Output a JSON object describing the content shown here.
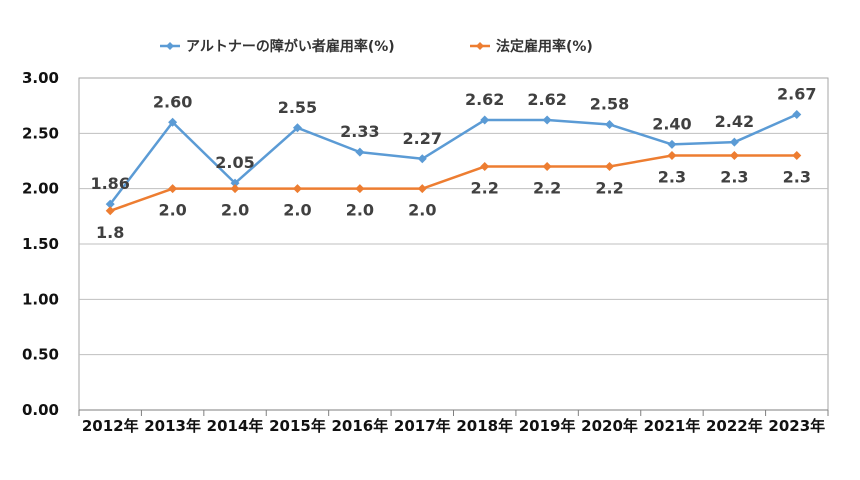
{
  "chart_data": {
    "type": "line",
    "title": "",
    "xlabel": "",
    "ylabel": "",
    "categories": [
      "2012年",
      "2013年",
      "2014年",
      "2015年",
      "2016年",
      "2017年",
      "2018年",
      "2019年",
      "2020年",
      "2021年",
      "2022年",
      "2023年"
    ],
    "ylim": [
      0,
      3
    ],
    "yticks": [
      "0.00",
      "0.50",
      "1.00",
      "1.50",
      "2.00",
      "2.50",
      "3.00"
    ],
    "grid": true,
    "legend_position": "top",
    "series": [
      {
        "name": "アルトナーの障がい者雇用率(%)",
        "color": "#5B9BD5",
        "marker": "diamond",
        "values": [
          1.86,
          2.6,
          2.05,
          2.55,
          2.33,
          2.27,
          2.62,
          2.62,
          2.58,
          2.4,
          2.42,
          2.67
        ],
        "labels": [
          "1.86",
          "2.60",
          "2.05",
          "2.55",
          "2.33",
          "2.27",
          "2.62",
          "2.62",
          "2.58",
          "2.40",
          "2.42",
          "2.67"
        ],
        "label_position": "above"
      },
      {
        "name": "法定雇用率(%)",
        "color": "#ED7D31",
        "marker": "diamond",
        "values": [
          1.8,
          2.0,
          2.0,
          2.0,
          2.0,
          2.0,
          2.2,
          2.2,
          2.2,
          2.3,
          2.3,
          2.3
        ],
        "labels": [
          "1.8",
          "2.0",
          "2.0",
          "2.0",
          "2.0",
          "2.0",
          "2.2",
          "2.2",
          "2.2",
          "2.3",
          "2.3",
          "2.3"
        ],
        "label_position": "below"
      }
    ]
  }
}
